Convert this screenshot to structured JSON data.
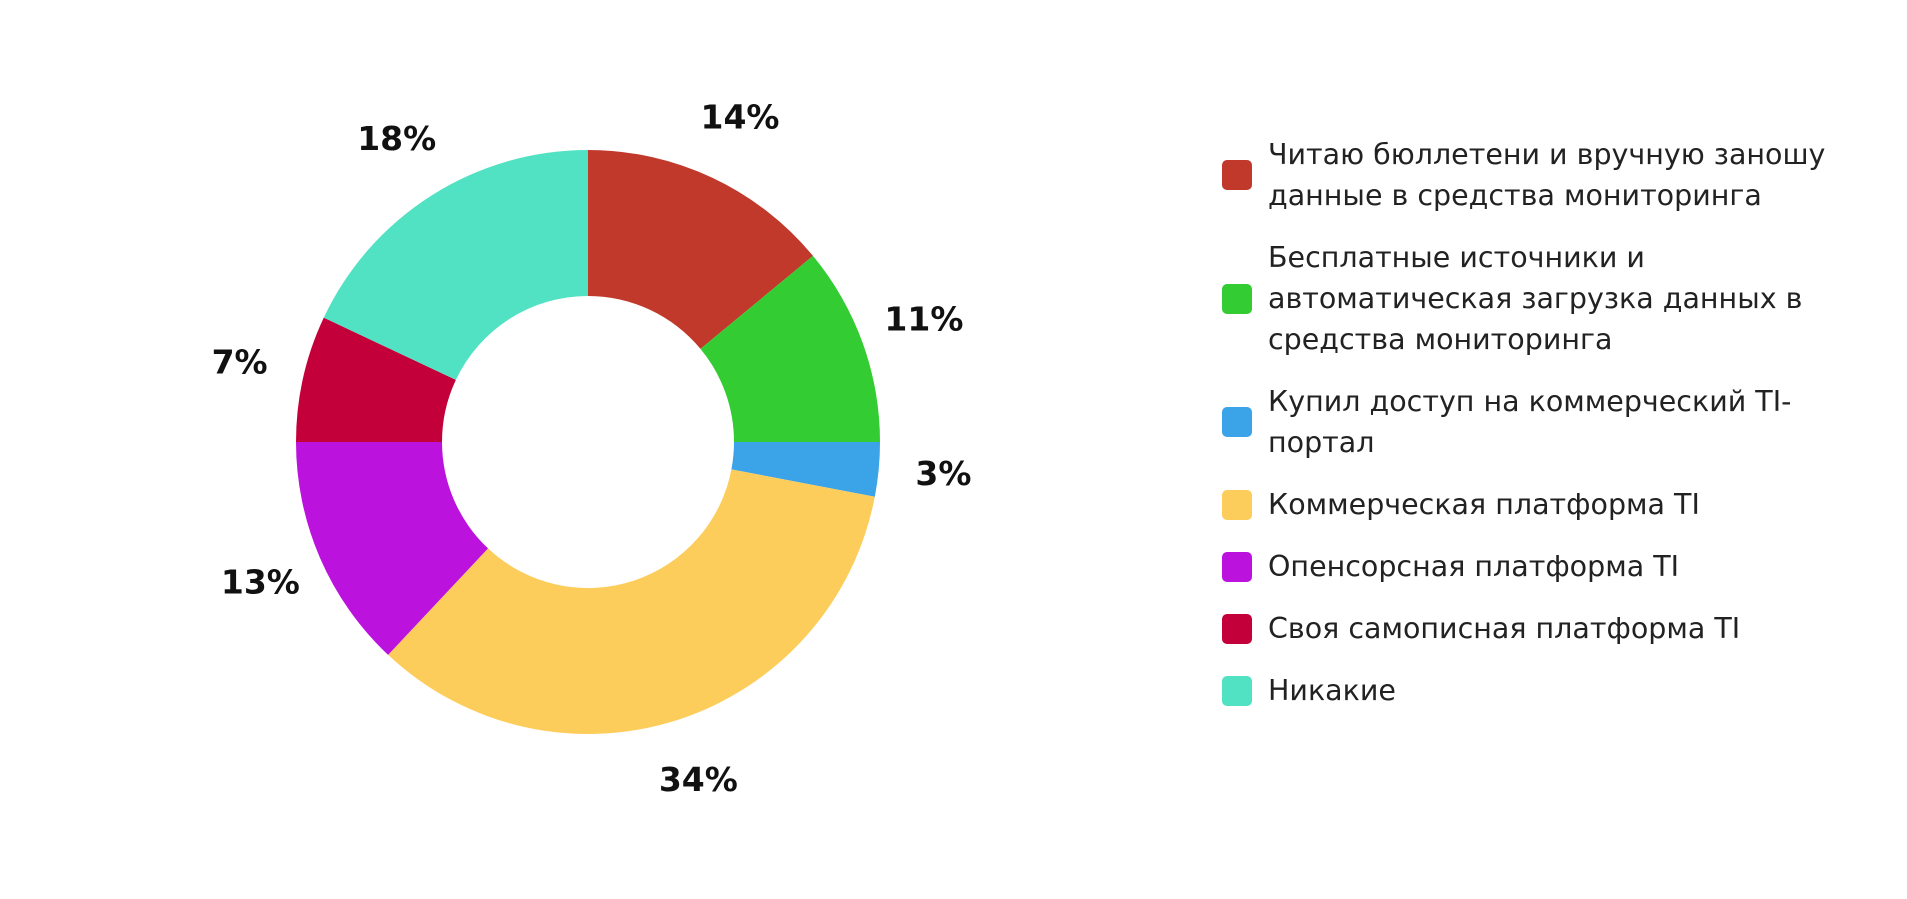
{
  "chart_data": {
    "type": "pie",
    "variant": "donut",
    "legend_position": "right",
    "slices": [
      {
        "label": "Читаю бюллетени и вручную заношу данные в средства мониторинга",
        "value": 14,
        "value_label": "14%",
        "color": "#c0392b"
      },
      {
        "label": "Бесплатные источники и автоматическая загрузка данных в средства мониторинга",
        "value": 11,
        "value_label": "11%",
        "color": "#33cc33"
      },
      {
        "label": "Купил доступ на коммерческий TI-портал",
        "value": 3,
        "value_label": "3%",
        "color": "#3ba3e8"
      },
      {
        "label": "Коммерческая платформа TI",
        "value": 34,
        "value_label": "34%",
        "color": "#fdcd5b"
      },
      {
        "label": "Опенсорсная платформа TI",
        "value": 13,
        "value_label": "13%",
        "color": "#bb12de"
      },
      {
        "label": "Своя самописная платформа TI",
        "value": 7,
        "value_label": "7%",
        "color": "#c4003a"
      },
      {
        "label": "Никакие",
        "value": 18,
        "value_label": "18%",
        "color": "#51e2c3"
      }
    ]
  }
}
